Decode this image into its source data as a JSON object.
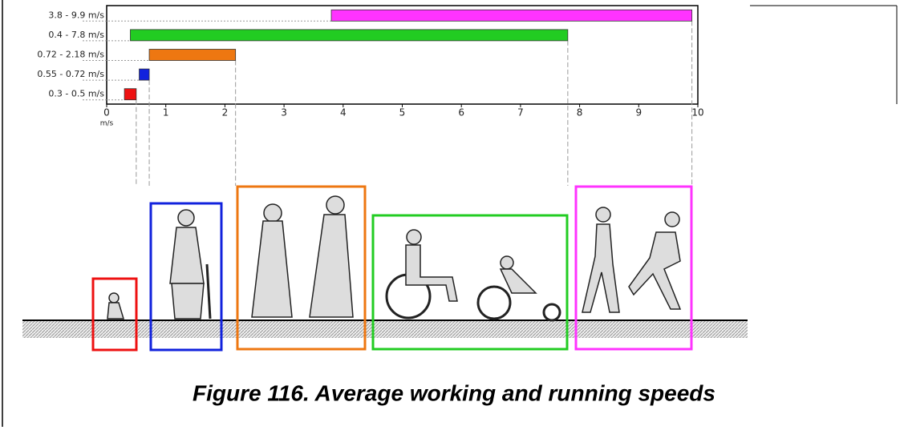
{
  "chart_data": {
    "type": "range-bar",
    "categories": [
      "3.8 - 9.9 m/s",
      "0.4 - 7.8 m/s",
      "0.72 - 2.18 m/s",
      "0.55 - 0.72 m/s",
      "0.3 - 0.5 m/s"
    ],
    "low": [
      3.8,
      0.4,
      0.72,
      0.55,
      0.3
    ],
    "high": [
      9.9,
      7.8,
      2.18,
      0.72,
      0.5
    ],
    "colors": [
      "#ff33ff",
      "#22cc22",
      "#ee7711",
      "#1122dd",
      "#ee1111"
    ],
    "xlim": [
      0,
      10
    ],
    "xticks": [
      0,
      1,
      2,
      3,
      4,
      5,
      6,
      7,
      8,
      9,
      10
    ],
    "xlabel": "m/s"
  },
  "caption": "Figure 116. Average working and running speeds"
}
